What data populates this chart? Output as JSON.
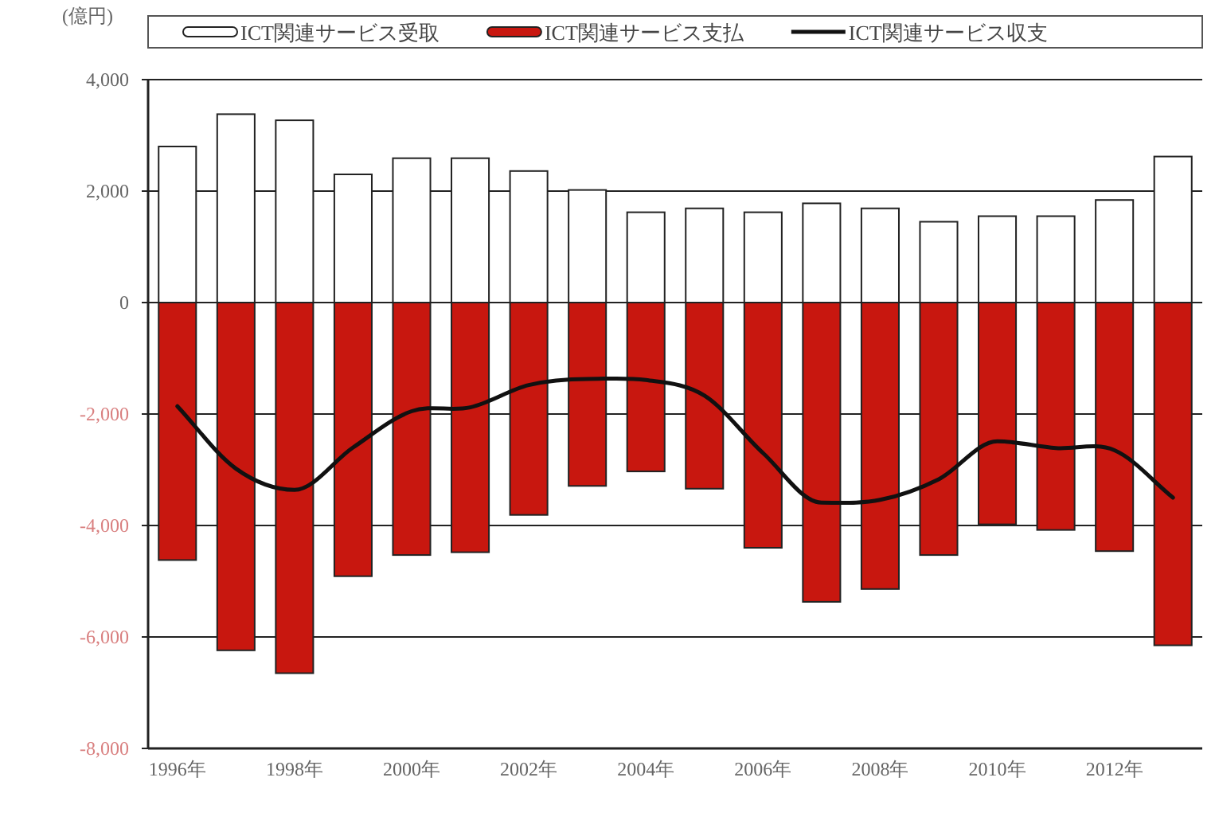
{
  "chart_data": {
    "type": "bar",
    "stacked": true,
    "ylabel": "(億円)",
    "categories": [
      "1996年",
      null,
      "1998年",
      null,
      "2000年",
      null,
      "2002年",
      null,
      "2004年",
      null,
      "2006年",
      null,
      "2008年",
      null,
      "2010年",
      null,
      "2012年",
      null
    ],
    "series": [
      {
        "name": "ICT関連サービス受取",
        "color": "#ffffff",
        "values": [
          2800,
          3380,
          3270,
          2300,
          2590,
          2590,
          2360,
          2020,
          1620,
          1690,
          1620,
          1780,
          1690,
          1450,
          1550,
          1550,
          1840,
          2620
        ]
      },
      {
        "name": "ICT関連サービス支払",
        "color": "#c8170f",
        "values": [
          -4620,
          -6240,
          -6650,
          -4910,
          -4530,
          -4480,
          -3810,
          -3290,
          -3030,
          -3340,
          -4400,
          -5370,
          -5140,
          -4530,
          -3980,
          -4080,
          -4460,
          -6150
        ]
      },
      {
        "name": "ICT関連サービス収支",
        "type": "line",
        "color": "#111111",
        "values": [
          -1860,
          -2980,
          -3360,
          -2600,
          -1950,
          -1880,
          -1480,
          -1370,
          -1390,
          -1670,
          -2700,
          -3590,
          -3540,
          -3170,
          -2490,
          -2610,
          -2650,
          -3500
        ]
      }
    ],
    "ylim": [
      -8000,
      4000
    ],
    "yticks": [
      {
        "value": -8000,
        "label": "-8,000"
      },
      {
        "value": -6000,
        "label": "-6,000"
      },
      {
        "value": -4000,
        "label": "-4,000"
      },
      {
        "value": -2000,
        "label": "-2,000"
      },
      0,
      {
        "value": 2000,
        "label": "2,000"
      },
      {
        "value": 4000,
        "label": "4,000"
      }
    ],
    "grid": "y",
    "legend": "top",
    "marker": "none",
    "line_style": "solid"
  }
}
